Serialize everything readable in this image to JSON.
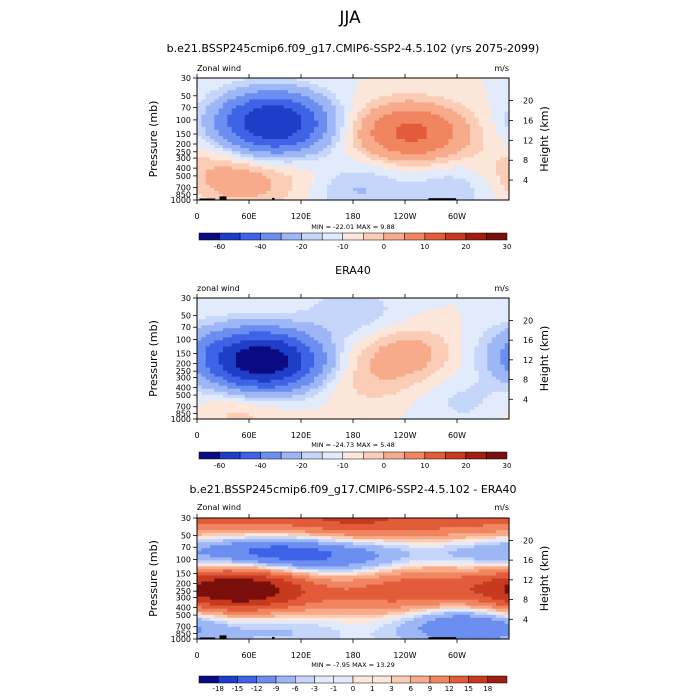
{
  "main_title": "JJA",
  "chart_data": [
    {
      "type": "heatmap",
      "title": "b.e21.BSSP245cmip6.f09_g17.CMIP6-SSP2-4.5.102 (yrs 2075-2099)",
      "left_label": "Zonal wind",
      "right_label": "m/s",
      "ylabel": "Pressure (mb)",
      "ylabel_right": "Height (km)",
      "y_ticks": [
        "30",
        "50",
        "70",
        "100",
        "150",
        "200",
        "250",
        "300",
        "400",
        "500",
        "700",
        "850",
        "1000"
      ],
      "y_ticks_right": [
        "20",
        "16",
        "12",
        "8",
        "4"
      ],
      "x_ticks": [
        "0",
        "60E",
        "120E",
        "180",
        "120W",
        "60W"
      ],
      "stats_text": "MIN = -22.01  MAX =  9.88",
      "min": -22.01,
      "max": 9.88,
      "colorbar_labels": [
        "-60",
        "-40",
        "-20",
        "-10",
        "0",
        "10",
        "20",
        "30"
      ],
      "blobs": [
        {
          "lon": 0,
          "p": 450,
          "v": 2
        },
        {
          "lon": 140,
          "p": 550,
          "v": 1.5
        },
        {
          "lon": 85,
          "p": 103,
          "v": -20
        },
        {
          "lon": 95,
          "p": 130,
          "v": -6
        },
        {
          "lon": 240,
          "p": 140,
          "v": 8
        },
        {
          "lon": 260,
          "p": 150,
          "v": 5
        },
        {
          "lon": 55,
          "p": 600,
          "v": 4
        },
        {
          "lon": 180,
          "p": 700,
          "v": -4
        },
        {
          "lon": 300,
          "p": 700,
          "v": -3
        }
      ],
      "topo": [
        {
          "lon": 12,
          "w": 18,
          "h": 0.5
        },
        {
          "lon": 30,
          "w": 8,
          "h": 1.2
        },
        {
          "lon": 88,
          "w": 3,
          "h": 0.7
        },
        {
          "lon": 283,
          "w": 32,
          "h": 0.6
        }
      ]
    },
    {
      "type": "heatmap",
      "title": "ERA40",
      "left_label": "zonal wind",
      "right_label": "m/s",
      "ylabel": "Pressure (mb)",
      "ylabel_right": "Height (km)",
      "y_ticks": [
        "30",
        "50",
        "70",
        "100",
        "150",
        "200",
        "250",
        "300",
        "400",
        "500",
        "700",
        "850",
        "1000"
      ],
      "y_ticks_right": [
        "20",
        "16",
        "12",
        "8",
        "4"
      ],
      "x_ticks": [
        "0",
        "60E",
        "120E",
        "180",
        "120W",
        "60W"
      ],
      "stats_text": "MIN = -24.73  MAX =  5.48",
      "min": -24.73,
      "max": 5.48,
      "colorbar_labels": [
        "-60",
        "-40",
        "-20",
        "-10",
        "0",
        "10",
        "20",
        "30"
      ],
      "blobs": [
        {
          "lon": 75,
          "p": 195,
          "v": -22
        },
        {
          "lon": 85,
          "p": 170,
          "v": -10
        },
        {
          "lon": 20,
          "p": 140,
          "v": -5
        },
        {
          "lon": 240,
          "p": 150,
          "v": 4.5
        },
        {
          "lon": 200,
          "p": 350,
          "v": 2
        },
        {
          "lon": 50,
          "p": 700,
          "v": 2.5
        },
        {
          "lon": 180,
          "p": 48,
          "v": -3
        },
        {
          "lon": 310,
          "p": 600,
          "v": -2
        }
      ],
      "topo": []
    },
    {
      "type": "heatmap",
      "title": "b.e21.BSSP245cmip6.f09_g17.CMIP6-SSP2-4.5.102 - ERA40",
      "left_label": "Zonal wind",
      "right_label": "m/s",
      "ylabel": "Pressure (mb)",
      "ylabel_right": "Height (km)",
      "y_ticks": [
        "30",
        "50",
        "70",
        "100",
        "150",
        "200",
        "250",
        "300",
        "400",
        "500",
        "700",
        "850",
        "1000"
      ],
      "y_ticks_right": [
        "20",
        "16",
        "12",
        "8",
        "4"
      ],
      "x_ticks": [
        "0",
        "60E",
        "120E",
        "180",
        "120W",
        "60W"
      ],
      "stats_text": "MIN = -7.95  MAX = 13.29",
      "min": -7.95,
      "max": 13.29,
      "colorbar_labels": [
        "-18",
        "-15",
        "-12",
        "-9",
        "-6",
        "-3",
        "-1",
        "0",
        "1",
        "3",
        "6",
        "9",
        "12",
        "15",
        "18"
      ],
      "blobs": [
        {
          "lon": 180,
          "p": 30,
          "v": 9
        },
        {
          "lon": 60,
          "p": 30,
          "v": 6
        },
        {
          "lon": 300,
          "p": 32,
          "v": 6
        },
        {
          "lon": 85,
          "p": 85,
          "v": -7
        },
        {
          "lon": 180,
          "p": 90,
          "v": -4
        },
        {
          "lon": 330,
          "p": 80,
          "v": -3
        },
        {
          "lon": 60,
          "p": 230,
          "v": 12
        },
        {
          "lon": 25,
          "p": 250,
          "v": 7
        },
        {
          "lon": 260,
          "p": 230,
          "v": 7
        },
        {
          "lon": 180,
          "p": 300,
          "v": 3
        },
        {
          "lon": 310,
          "p": 650,
          "v": -6
        },
        {
          "lon": 100,
          "p": 700,
          "v": -2
        }
      ],
      "topo": [
        {
          "lon": 12,
          "w": 18,
          "h": 0.5
        },
        {
          "lon": 30,
          "w": 8,
          "h": 1.2
        },
        {
          "lon": 88,
          "w": 3,
          "h": 0.7
        },
        {
          "lon": 283,
          "w": 32,
          "h": 0.6
        }
      ]
    }
  ],
  "colors": {
    "neg": [
      "#0a0a82",
      "#1f3ec8",
      "#3e63e6",
      "#6b8ef0",
      "#9db6f6",
      "#c6d6fa",
      "#e2ebfc"
    ],
    "pos": [
      "#fde6da",
      "#fbcdb6",
      "#f7ab8a",
      "#f08560",
      "#e25c3a",
      "#c83a1f",
      "#7a0f0c"
    ],
    "cb_sequence": [
      "#0a0a82",
      "#1f3ec8",
      "#3e63e6",
      "#6b8ef0",
      "#9db6f6",
      "#c6d6fa",
      "#e2ebfc",
      "#fde6da",
      "#fbcdb6",
      "#f7ab8a",
      "#f08560",
      "#e25c3a",
      "#c83a1f",
      "#a01d12",
      "#7a0f0c"
    ]
  }
}
